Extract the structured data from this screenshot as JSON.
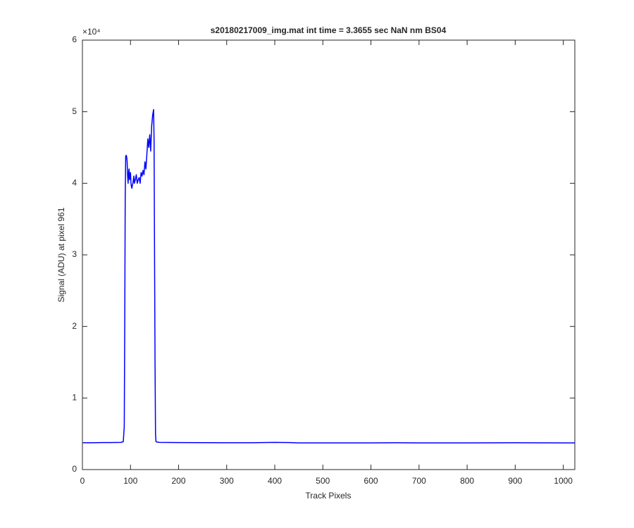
{
  "chart_data": {
    "type": "line",
    "title": "s20180217009_img.mat int time = 3.3655 sec  NaN nm BS04",
    "x_label": "Track Pixels",
    "y_label": "Signal (ADU) at pixel 961",
    "y_exponent_label": "×10⁴",
    "x": [
      1,
      20,
      40,
      60,
      80,
      85,
      87,
      88,
      89,
      90,
      91,
      92,
      93,
      94,
      95,
      96,
      97,
      98,
      99,
      100,
      101,
      102,
      103,
      104,
      105,
      106,
      107,
      108,
      110,
      112,
      114,
      116,
      118,
      120,
      122,
      124,
      126,
      128,
      130,
      132,
      134,
      136,
      138,
      140,
      142,
      144,
      146,
      148,
      149,
      150,
      151,
      152,
      153,
      155,
      160,
      200,
      300,
      350,
      400,
      430,
      450,
      500,
      600,
      650,
      700,
      800,
      900,
      1000,
      1024
    ],
    "series": [
      {
        "color": "#0000ff",
        "values": [
          0.375,
          0.375,
          0.377,
          0.378,
          0.38,
          0.39,
          0.6,
          2.0,
          3.8,
          4.38,
          4.39,
          4.37,
          4.3,
          4.1,
          4.0,
          4.15,
          4.2,
          4.05,
          4.1,
          4.15,
          4.0,
          3.95,
          3.93,
          3.98,
          4.0,
          4.05,
          4.1,
          4.0,
          4.05,
          4.12,
          4.0,
          4.05,
          4.08,
          4.0,
          4.15,
          4.1,
          4.18,
          4.12,
          4.3,
          4.2,
          4.4,
          4.62,
          4.5,
          4.68,
          4.45,
          4.8,
          4.95,
          5.03,
          4.6,
          3.0,
          1.5,
          0.5,
          0.39,
          0.385,
          0.38,
          0.378,
          0.375,
          0.375,
          0.38,
          0.377,
          0.372,
          0.372,
          0.372,
          0.375,
          0.372,
          0.372,
          0.375,
          0.372,
          0.372
        ]
      }
    ],
    "xlim": [
      0,
      1024
    ],
    "xticks": [
      0,
      100,
      200,
      300,
      400,
      500,
      600,
      700,
      800,
      900,
      1000
    ],
    "ylim": [
      0,
      6
    ],
    "yticks": [
      0,
      1,
      2,
      3,
      4,
      5,
      6
    ],
    "grid": false
  }
}
